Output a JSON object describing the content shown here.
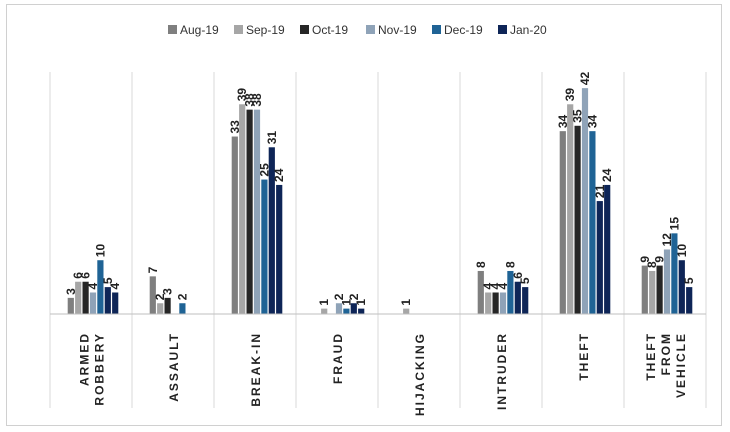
{
  "chart_data": {
    "type": "bar",
    "categories": [
      "ARMED ROBBERY",
      "ASSAULT",
      "BREAK-IN",
      "FRAUD",
      "HIJACKING",
      "INTRUDER",
      "THEFT",
      "THEFT FROM VEHICLE"
    ],
    "series": [
      {
        "name": "Aug-19",
        "color": "#7f7f7f",
        "values": [
          3,
          7,
          33,
          0,
          0,
          8,
          34,
          9
        ]
      },
      {
        "name": "Sep-19",
        "color": "#a6a6a6",
        "values": [
          6,
          2,
          39,
          1,
          1,
          4,
          39,
          8
        ]
      },
      {
        "name": "Oct-19",
        "color": "#262626",
        "values": [
          6,
          3,
          38,
          0,
          0,
          4,
          35,
          9
        ]
      },
      {
        "name": "Nov-19",
        "color": "#8fa3b8",
        "values": [
          4,
          0,
          38,
          2,
          0,
          4,
          42,
          12
        ]
      },
      {
        "name": "Dec-19",
        "color": "#1f6395",
        "values": [
          10,
          2,
          25,
          1,
          0,
          8,
          34,
          15
        ]
      },
      {
        "name": "Jan-20",
        "color": "#0e2557",
        "values": [
          5,
          0,
          31,
          2,
          0,
          6,
          21,
          10
        ]
      },
      {
        "name": "",
        "color": "#0e2557",
        "values": [
          4,
          0,
          24,
          1,
          0,
          5,
          24,
          5
        ]
      }
    ],
    "data_labels": [
      [
        "3",
        "6",
        "6",
        "4",
        "10",
        "5",
        "4"
      ],
      [
        "7",
        "2",
        "3",
        "",
        "2",
        "",
        ""
      ],
      [
        "33",
        "39",
        "38",
        "38",
        "25",
        "31",
        "24"
      ],
      [
        "",
        "1",
        "",
        "2",
        "1",
        "2",
        "1"
      ],
      [
        "",
        "1",
        "",
        "",
        "",
        "",
        ""
      ],
      [
        "8",
        "4",
        "4",
        "4",
        "8",
        "6",
        "5"
      ],
      [
        "34",
        "39",
        "35",
        "42",
        "34",
        "21",
        "24"
      ],
      [
        "9",
        "8",
        "9",
        "12",
        "15",
        "10",
        "5"
      ]
    ],
    "ylim": [
      0,
      45
    ],
    "grid": false,
    "legend_position": "top"
  },
  "legend": {
    "items": [
      "Aug-19",
      "Sep-19",
      "Oct-19",
      "Nov-19",
      "Dec-19",
      "Jan-20"
    ]
  }
}
